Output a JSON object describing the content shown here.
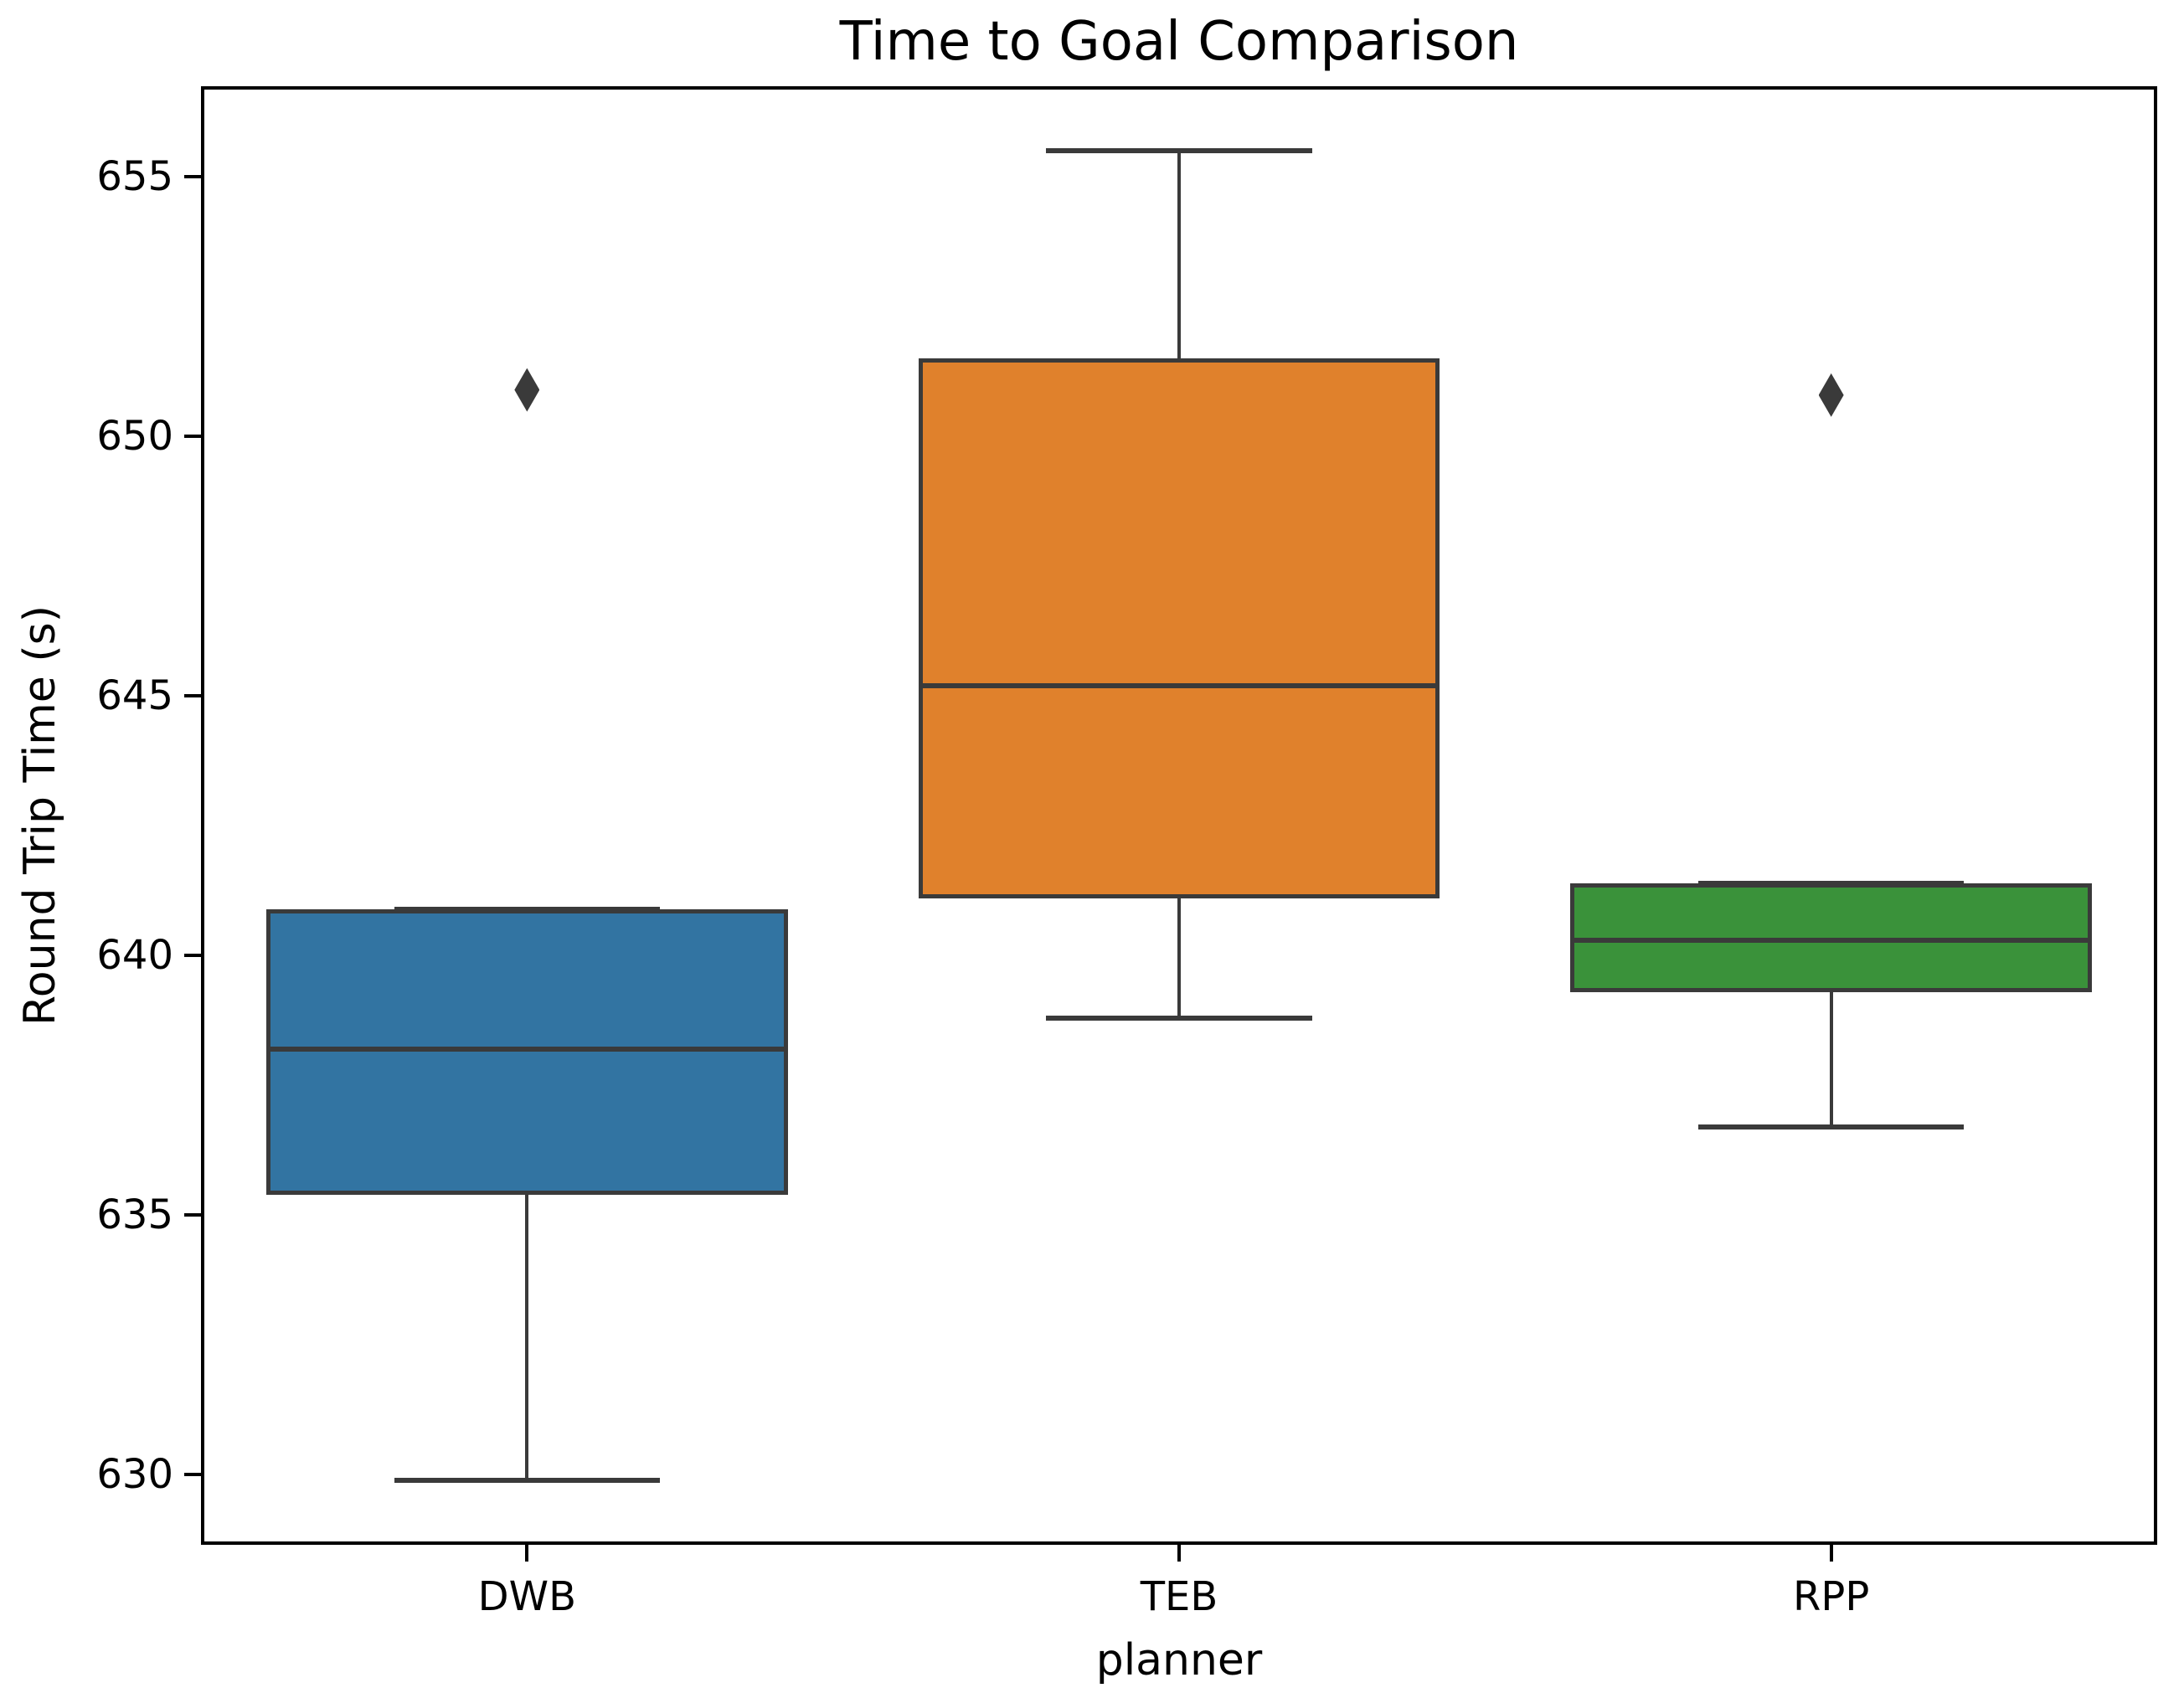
{
  "chart_data": {
    "type": "box",
    "title": "Time to Goal Comparison",
    "xlabel": "planner",
    "ylabel": "Round Trip Time (s)",
    "categories": [
      "DWB",
      "TEB",
      "RPP"
    ],
    "ylim": [
      628.65,
      656.75
    ],
    "yticks": [
      630,
      635,
      640,
      645,
      650,
      655
    ],
    "grid": false,
    "legend": false,
    "series": [
      {
        "label": "DWB",
        "color": "#3274A2",
        "whisker_low": 629.9,
        "q1": 635.4,
        "median": 638.2,
        "q3": 640.9,
        "whisker_high": 640.9,
        "outliers": [
          650.9
        ]
      },
      {
        "label": "TEB",
        "color": "#E0812C",
        "whisker_low": 638.8,
        "q1": 641.1,
        "median": 645.2,
        "q3": 651.5,
        "whisker_high": 655.5,
        "outliers": []
      },
      {
        "label": "RPP",
        "color": "#3A923A",
        "whisker_low": 636.7,
        "q1": 639.3,
        "median": 640.3,
        "q3": 641.4,
        "whisker_high": 641.4,
        "outliers": [
          650.8
        ]
      }
    ]
  },
  "style": {
    "box_edge_color": "#3A3A3A",
    "whisker_color": "#3A3A3A",
    "outlier_color": "#3A3A3A",
    "spine_color": "#000000",
    "background": "#FFFFFF"
  }
}
